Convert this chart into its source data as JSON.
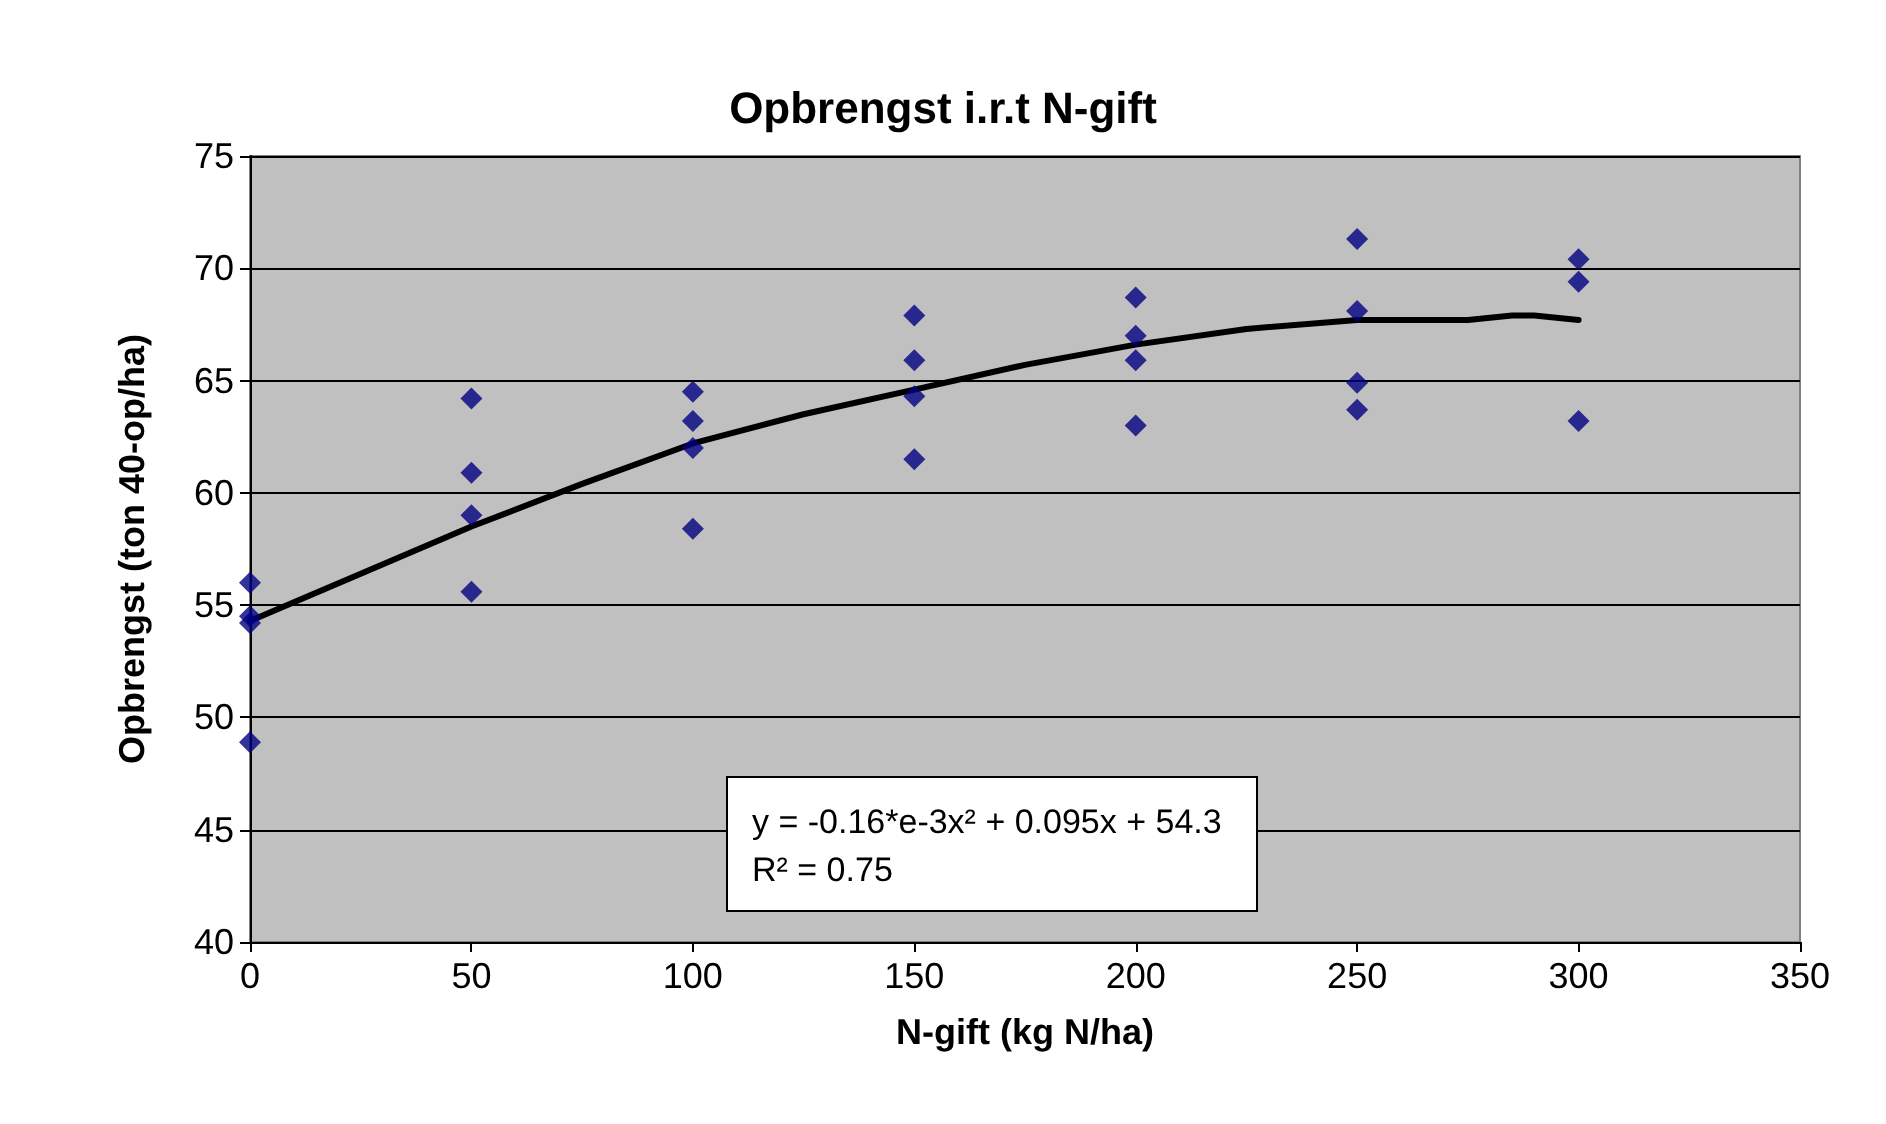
{
  "chart_data": {
    "type": "scatter",
    "title": "Opbrengst i.r.t N-gift",
    "xlabel": "N-gift (kg N/ha)",
    "ylabel": "Opbrengst (ton 40-op/ha)",
    "xlim": [
      0,
      350
    ],
    "xticks": [
      0,
      50,
      100,
      150,
      200,
      250,
      300,
      350
    ],
    "ylim": [
      40,
      75
    ],
    "yticks": [
      40,
      45,
      50,
      55,
      60,
      65,
      70,
      75
    ],
    "grid": "y",
    "marker": "diamond",
    "annotations": [
      "y = -0.16*e-3x² + 0.095x + 54.3\nR² = 0.75"
    ],
    "series": [
      {
        "color": "#000080",
        "x": [
          0,
          0,
          0,
          0,
          50,
          50,
          50,
          50,
          100,
          100,
          100,
          100,
          150,
          150,
          150,
          150,
          200,
          200,
          200,
          200,
          250,
          250,
          250,
          250,
          300,
          300,
          300
        ],
        "values": [
          56.0,
          54.5,
          54.2,
          48.9,
          64.2,
          60.9,
          59.0,
          55.6,
          64.5,
          63.2,
          62.0,
          58.4,
          67.9,
          65.9,
          64.3,
          61.5,
          68.7,
          67.0,
          65.9,
          63.0,
          71.3,
          68.1,
          64.9,
          63.7,
          70.4,
          69.4,
          63.2
        ]
      },
      {
        "type": "line",
        "color": "#000000",
        "marker": "none",
        "line_style": "solid",
        "x": [
          0,
          25,
          50,
          75,
          100,
          125,
          150,
          175,
          200,
          225,
          250,
          275,
          285,
          290,
          300
        ],
        "values": [
          54.3,
          56.4,
          58.5,
          60.4,
          62.2,
          63.5,
          64.6,
          65.7,
          66.6,
          67.3,
          67.7,
          67.7,
          67.9,
          67.9,
          67.7
        ]
      }
    ]
  }
}
